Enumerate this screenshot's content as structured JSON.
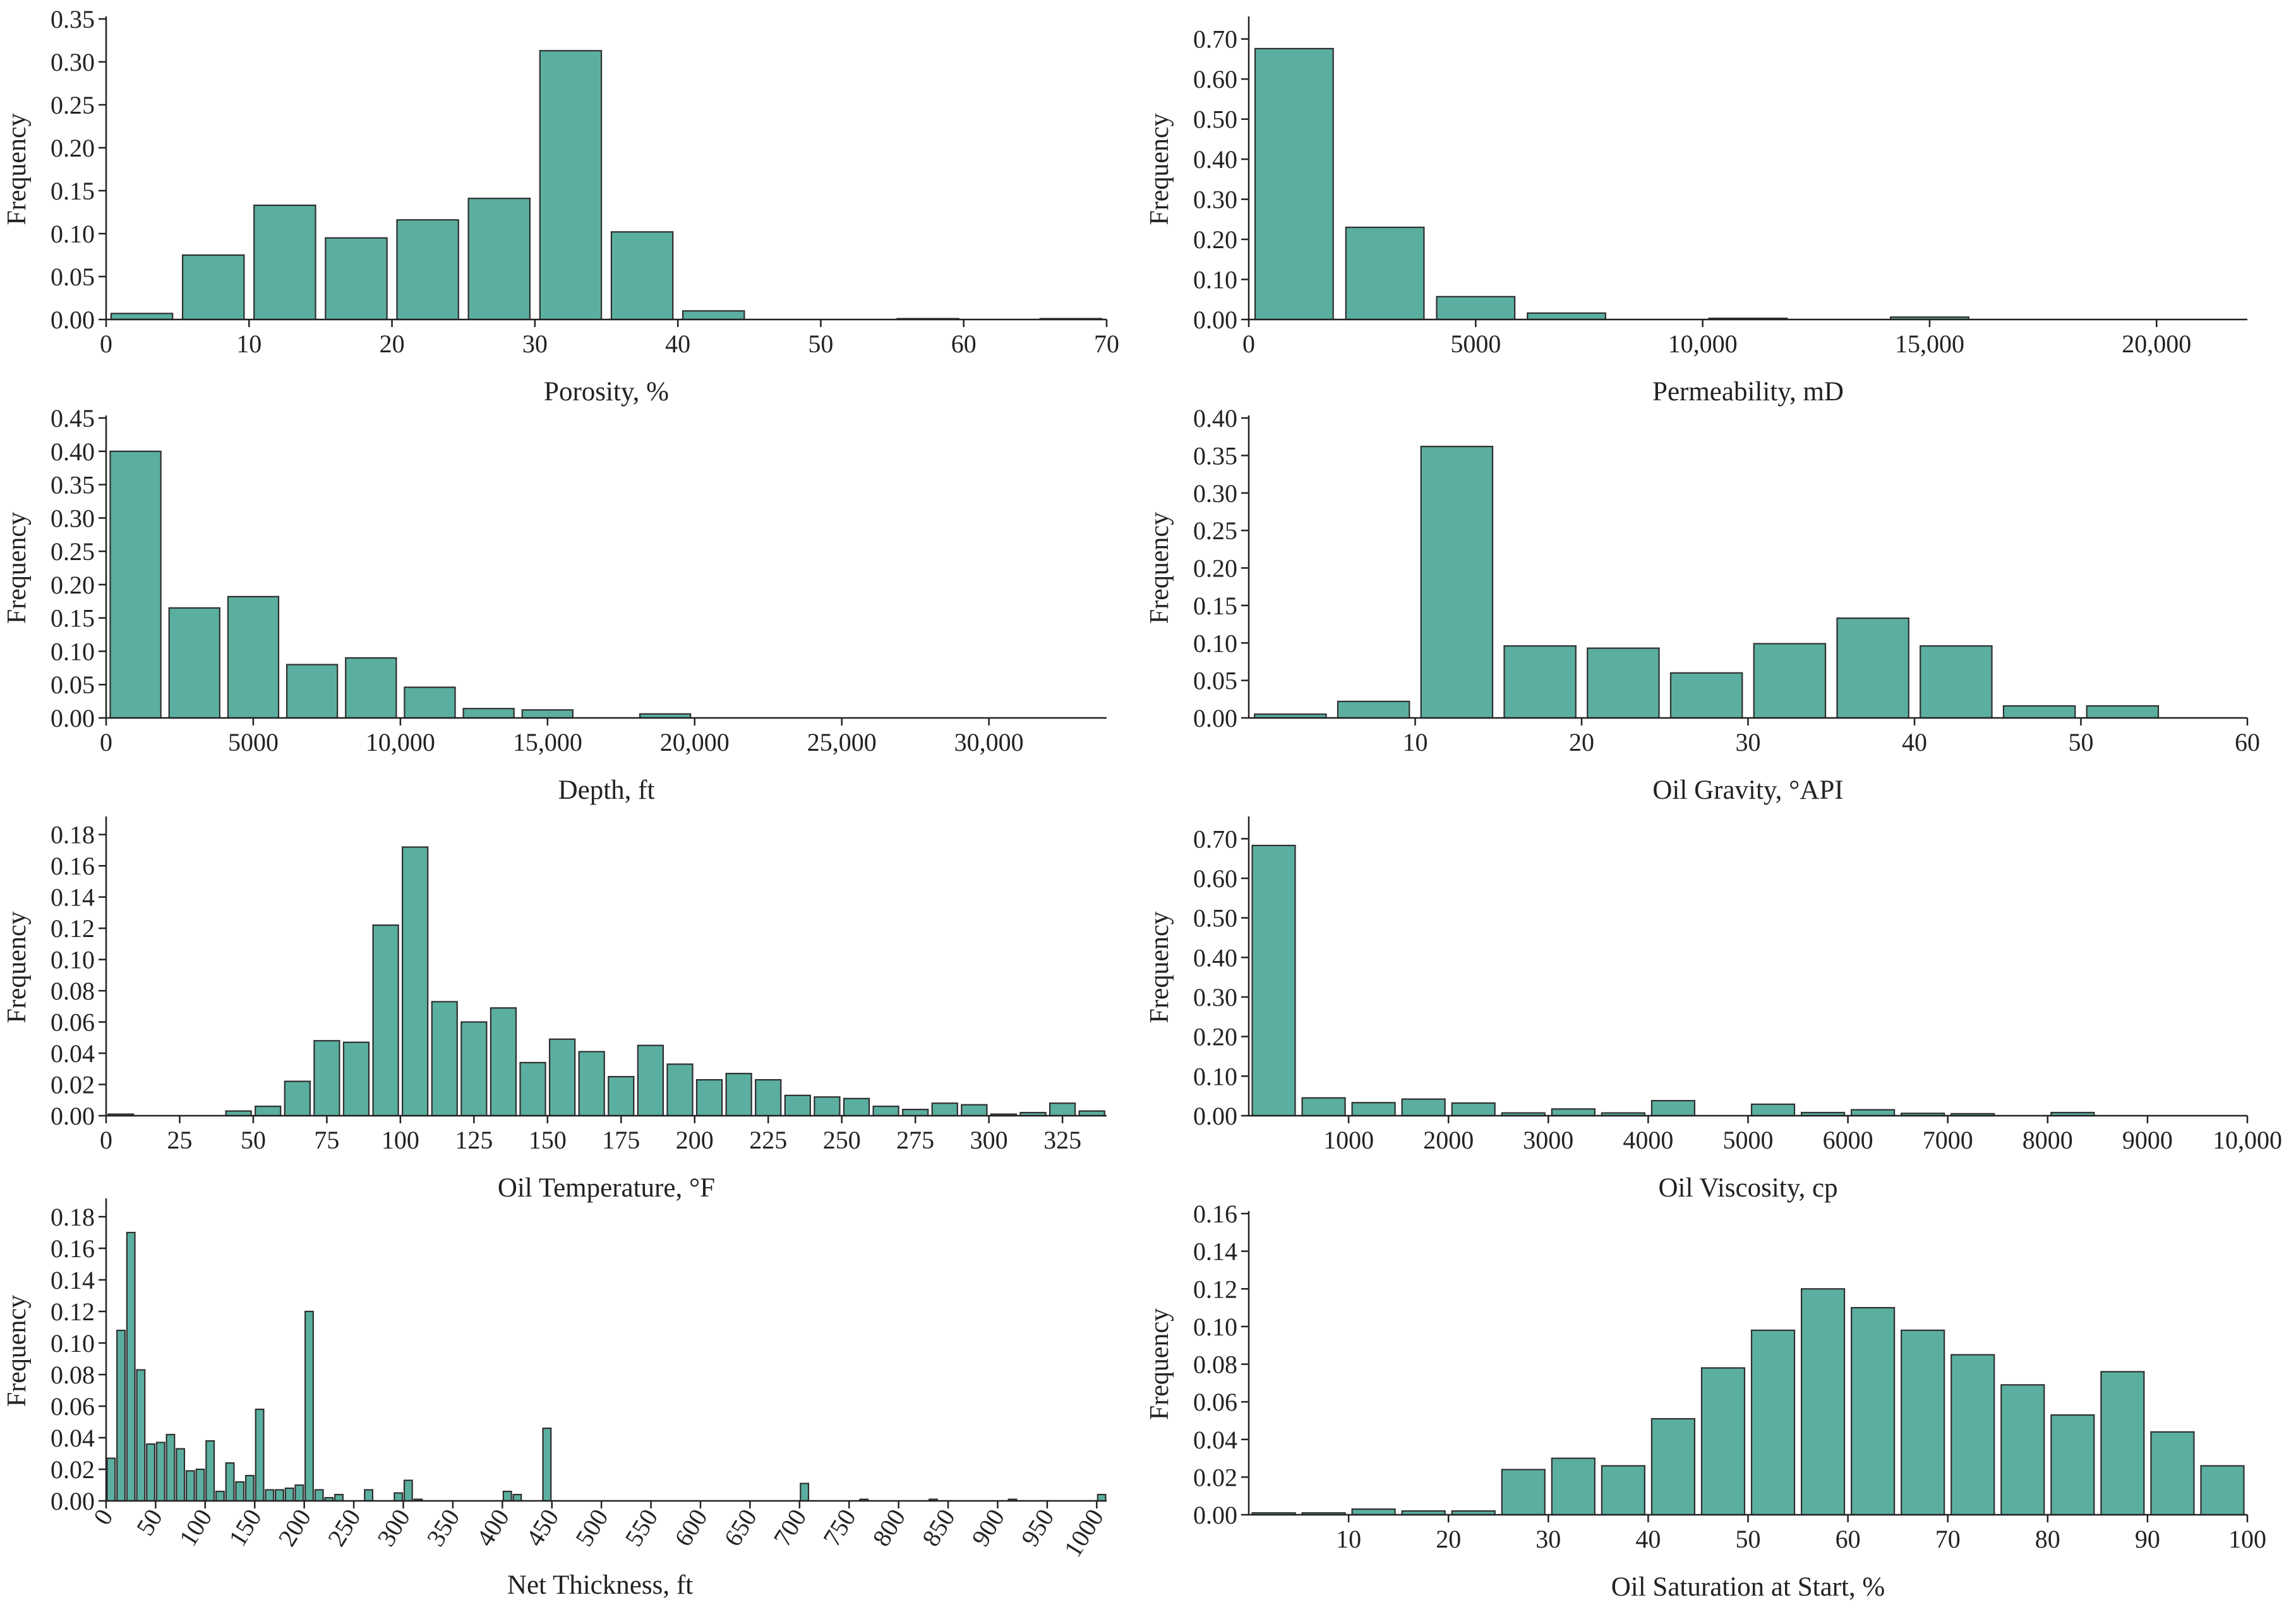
{
  "colors": {
    "bar": "#5BAFA0",
    "barStroke": "#2F2F2F",
    "axis": "#222222"
  },
  "chart_data": [
    {
      "type": "bar",
      "title": "",
      "xlabel": "Porosity, %",
      "ylabel": "Frequency",
      "xlim": [
        0,
        70
      ],
      "ylim": [
        0,
        0.35
      ],
      "xticks": [
        0,
        10,
        20,
        30,
        40,
        50,
        60,
        70
      ],
      "xtick_labels": [
        "0",
        "10",
        "20",
        "30",
        "40",
        "50",
        "60",
        "70"
      ],
      "yticks": [
        0,
        0.05,
        0.1,
        0.15,
        0.2,
        0.25,
        0.3,
        0.35
      ],
      "ytick_labels": [
        "0.00",
        "0.05",
        "0.10",
        "0.15",
        "0.20",
        "0.25",
        "0.30",
        "0.35"
      ],
      "bin_width": 5,
      "bars": [
        [
          0,
          0.007
        ],
        [
          5,
          0.075
        ],
        [
          10,
          0.133
        ],
        [
          15,
          0.095
        ],
        [
          20,
          0.116
        ],
        [
          25,
          0.141
        ],
        [
          30,
          0.313
        ],
        [
          35,
          0.102
        ],
        [
          40,
          0.01
        ],
        [
          55,
          0.001
        ],
        [
          65,
          0.001
        ]
      ]
    },
    {
      "type": "bar",
      "title": "",
      "xlabel": "Permeability, mD",
      "ylabel": "Frequency",
      "xlim": [
        0,
        22000
      ],
      "ylim": [
        0,
        0.75
      ],
      "xticks": [
        0,
        5000,
        10000,
        15000,
        20000
      ],
      "xtick_labels": [
        "0",
        "5000",
        "10,000",
        "15,000",
        "20,000"
      ],
      "yticks": [
        0,
        0.1,
        0.2,
        0.3,
        0.4,
        0.5,
        0.6,
        0.7
      ],
      "ytick_labels": [
        "0.00",
        "0.10",
        "0.20",
        "0.30",
        "0.40",
        "0.50",
        "0.60",
        "0.70"
      ],
      "bin_width": 2000,
      "bars": [
        [
          0,
          0.676
        ],
        [
          2000,
          0.23
        ],
        [
          4000,
          0.057
        ],
        [
          6000,
          0.016
        ],
        [
          10000,
          0.003
        ],
        [
          14000,
          0.006
        ]
      ]
    },
    {
      "type": "bar",
      "title": "",
      "xlabel": "Depth, ft",
      "ylabel": "Frequency",
      "xlim": [
        0,
        34000
      ],
      "ylim": [
        0,
        0.45
      ],
      "xticks": [
        0,
        5000,
        10000,
        15000,
        20000,
        25000,
        30000
      ],
      "xtick_labels": [
        "0",
        "5000",
        "10,000",
        "15,000",
        "20,000",
        "25,000",
        "30,000"
      ],
      "yticks": [
        0,
        0.05,
        0.1,
        0.15,
        0.2,
        0.25,
        0.3,
        0.35,
        0.4,
        0.45
      ],
      "ytick_labels": [
        "0.00",
        "0.05",
        "0.10",
        "0.15",
        "0.20",
        "0.25",
        "0.30",
        "0.35",
        "0.40",
        "0.45"
      ],
      "bin_width": 2000,
      "bars": [
        [
          0,
          0.4
        ],
        [
          2000,
          0.165
        ],
        [
          4000,
          0.182
        ],
        [
          6000,
          0.08
        ],
        [
          8000,
          0.09
        ],
        [
          10000,
          0.046
        ],
        [
          12000,
          0.014
        ],
        [
          14000,
          0.012
        ],
        [
          18000,
          0.006
        ]
      ]
    },
    {
      "type": "bar",
      "title": "",
      "xlabel": "Oil Gravity, °API",
      "ylabel": "Frequency",
      "xlim": [
        0,
        60
      ],
      "ylim": [
        0,
        0.4
      ],
      "xticks": [
        10,
        20,
        30,
        40,
        50,
        60
      ],
      "xtick_labels": [
        "10",
        "20",
        "30",
        "40",
        "50",
        "60"
      ],
      "yticks": [
        0,
        0.05,
        0.1,
        0.15,
        0.2,
        0.25,
        0.3,
        0.35,
        0.4
      ],
      "ytick_labels": [
        "0.00",
        "0.05",
        "0.10",
        "0.15",
        "0.20",
        "0.25",
        "0.30",
        "0.35",
        "0.40"
      ],
      "bin_width": 5,
      "bars": [
        [
          0,
          0.005
        ],
        [
          5,
          0.022
        ],
        [
          10,
          0.362
        ],
        [
          15,
          0.096
        ],
        [
          20,
          0.093
        ],
        [
          25,
          0.06
        ],
        [
          30,
          0.099
        ],
        [
          35,
          0.133
        ],
        [
          40,
          0.096
        ],
        [
          45,
          0.016
        ],
        [
          50,
          0.016
        ]
      ]
    },
    {
      "type": "bar",
      "title": "",
      "xlabel": "Oil Temperature, °F",
      "ylabel": "Frequency",
      "xlim": [
        0,
        340
      ],
      "ylim": [
        0,
        0.19
      ],
      "xticks": [
        0,
        25,
        50,
        75,
        100,
        125,
        150,
        175,
        200,
        225,
        250,
        275,
        300,
        325
      ],
      "xtick_labels": [
        "0",
        "25",
        "50",
        "75",
        "100",
        "125",
        "150",
        "175",
        "200",
        "225",
        "250",
        "275",
        "300",
        "325"
      ],
      "yticks": [
        0,
        0.02,
        0.04,
        0.06,
        0.08,
        0.1,
        0.12,
        0.14,
        0.16,
        0.18
      ],
      "ytick_labels": [
        "0.00",
        "0.02",
        "0.04",
        "0.06",
        "0.08",
        "0.10",
        "0.12",
        "0.14",
        "0.16",
        "0.18"
      ],
      "bin_width": 10,
      "bars": [
        [
          0,
          0.001
        ],
        [
          40,
          0.003
        ],
        [
          50,
          0.006
        ],
        [
          60,
          0.022
        ],
        [
          70,
          0.048
        ],
        [
          80,
          0.047
        ],
        [
          90,
          0.122
        ],
        [
          100,
          0.172
        ],
        [
          110,
          0.073
        ],
        [
          120,
          0.06
        ],
        [
          130,
          0.069
        ],
        [
          140,
          0.034
        ],
        [
          150,
          0.049
        ],
        [
          160,
          0.041
        ],
        [
          170,
          0.025
        ],
        [
          180,
          0.045
        ],
        [
          190,
          0.033
        ],
        [
          200,
          0.023
        ],
        [
          210,
          0.027
        ],
        [
          220,
          0.023
        ],
        [
          230,
          0.013
        ],
        [
          240,
          0.012
        ],
        [
          250,
          0.011
        ],
        [
          260,
          0.006
        ],
        [
          270,
          0.004
        ],
        [
          280,
          0.008
        ],
        [
          290,
          0.007
        ],
        [
          300,
          0.001
        ],
        [
          310,
          0.002
        ],
        [
          320,
          0.008
        ],
        [
          330,
          0.003
        ]
      ]
    },
    {
      "type": "bar",
      "title": "",
      "xlabel": "Oil Viscosity, cp",
      "ylabel": "Frequency",
      "xlim": [
        0,
        10000
      ],
      "ylim": [
        0,
        0.75
      ],
      "xticks": [
        1000,
        2000,
        3000,
        4000,
        5000,
        6000,
        7000,
        8000,
        9000,
        10000
      ],
      "xtick_labels": [
        "1000",
        "2000",
        "3000",
        "4000",
        "5000",
        "6000",
        "7000",
        "8000",
        "9000",
        "10,000"
      ],
      "yticks": [
        0,
        0.1,
        0.2,
        0.3,
        0.4,
        0.5,
        0.6,
        0.7
      ],
      "ytick_labels": [
        "0.00",
        "0.10",
        "0.20",
        "0.30",
        "0.40",
        "0.50",
        "0.60",
        "0.70"
      ],
      "bin_width": 500,
      "bars": [
        [
          0,
          0.683
        ],
        [
          500,
          0.045
        ],
        [
          1000,
          0.033
        ],
        [
          1500,
          0.042
        ],
        [
          2000,
          0.032
        ],
        [
          2500,
          0.007
        ],
        [
          3000,
          0.017
        ],
        [
          3500,
          0.007
        ],
        [
          4000,
          0.038
        ],
        [
          5000,
          0.029
        ],
        [
          5500,
          0.008
        ],
        [
          6000,
          0.015
        ],
        [
          6500,
          0.006
        ],
        [
          7000,
          0.005
        ],
        [
          8000,
          0.008
        ]
      ]
    },
    {
      "type": "bar",
      "title": "",
      "xlabel": "Net Thickness, ft",
      "ylabel": "Frequency",
      "xlim": [
        0,
        1010
      ],
      "ylim": [
        0,
        0.19
      ],
      "xticks": [
        0,
        50,
        100,
        150,
        200,
        250,
        300,
        350,
        400,
        450,
        500,
        550,
        600,
        650,
        700,
        750,
        800,
        850,
        900,
        950,
        1000
      ],
      "xtick_labels": [
        "0",
        "50",
        "100",
        "150",
        "200",
        "250",
        "300",
        "350",
        "400",
        "450",
        "500",
        "550",
        "600",
        "650",
        "700",
        "750",
        "800",
        "850",
        "900",
        "950",
        "1000"
      ],
      "yticks": [
        0,
        0.02,
        0.04,
        0.06,
        0.08,
        0.1,
        0.12,
        0.14,
        0.16,
        0.18
      ],
      "ytick_labels": [
        "0.00",
        "0.02",
        "0.04",
        "0.06",
        "0.08",
        "0.10",
        "0.12",
        "0.14",
        "0.16",
        "0.18"
      ],
      "bin_width": 10,
      "bars": [
        [
          0,
          0.027
        ],
        [
          10,
          0.108
        ],
        [
          20,
          0.17
        ],
        [
          30,
          0.083
        ],
        [
          40,
          0.036
        ],
        [
          50,
          0.037
        ],
        [
          60,
          0.042
        ],
        [
          70,
          0.033
        ],
        [
          80,
          0.019
        ],
        [
          90,
          0.02
        ],
        [
          100,
          0.038
        ],
        [
          110,
          0.006
        ],
        [
          120,
          0.024
        ],
        [
          130,
          0.012
        ],
        [
          140,
          0.016
        ],
        [
          150,
          0.058
        ],
        [
          160,
          0.007
        ],
        [
          170,
          0.007
        ],
        [
          180,
          0.008
        ],
        [
          190,
          0.01
        ],
        [
          200,
          0.12
        ],
        [
          210,
          0.007
        ],
        [
          220,
          0.002
        ],
        [
          230,
          0.004
        ],
        [
          260,
          0.007
        ],
        [
          290,
          0.005
        ],
        [
          300,
          0.013
        ],
        [
          310,
          0.001
        ],
        [
          400,
          0.006
        ],
        [
          410,
          0.004
        ],
        [
          440,
          0.046
        ],
        [
          700,
          0.011
        ],
        [
          760,
          0.001
        ],
        [
          830,
          0.001
        ],
        [
          910,
          0.001
        ],
        [
          1000,
          0.004
        ]
      ]
    },
    {
      "type": "bar",
      "title": "",
      "xlabel": "Oil Saturation at Start, %",
      "ylabel": "Frequency",
      "xlim": [
        0,
        100
      ],
      "ylim": [
        0,
        0.16
      ],
      "xticks": [
        10,
        20,
        30,
        40,
        50,
        60,
        70,
        80,
        90,
        100
      ],
      "xtick_labels": [
        "10",
        "20",
        "30",
        "40",
        "50",
        "60",
        "70",
        "80",
        "90",
        "100"
      ],
      "yticks": [
        0,
        0.02,
        0.04,
        0.06,
        0.08,
        0.1,
        0.12,
        0.14,
        0.16
      ],
      "ytick_labels": [
        "0.00",
        "0.02",
        "0.04",
        "0.06",
        "0.08",
        "0.10",
        "0.12",
        "0.14",
        "0.16"
      ],
      "bin_width": 5,
      "bars": [
        [
          0,
          0.001
        ],
        [
          5,
          0.001
        ],
        [
          10,
          0.003
        ],
        [
          15,
          0.002
        ],
        [
          20,
          0.002
        ],
        [
          25,
          0.024
        ],
        [
          30,
          0.03
        ],
        [
          35,
          0.026
        ],
        [
          40,
          0.051
        ],
        [
          45,
          0.078
        ],
        [
          50,
          0.098
        ],
        [
          55,
          0.12
        ],
        [
          60,
          0.11
        ],
        [
          65,
          0.098
        ],
        [
          70,
          0.085
        ],
        [
          75,
          0.069
        ],
        [
          80,
          0.053
        ],
        [
          85,
          0.076
        ],
        [
          90,
          0.044
        ],
        [
          95,
          0.026
        ]
      ]
    }
  ]
}
